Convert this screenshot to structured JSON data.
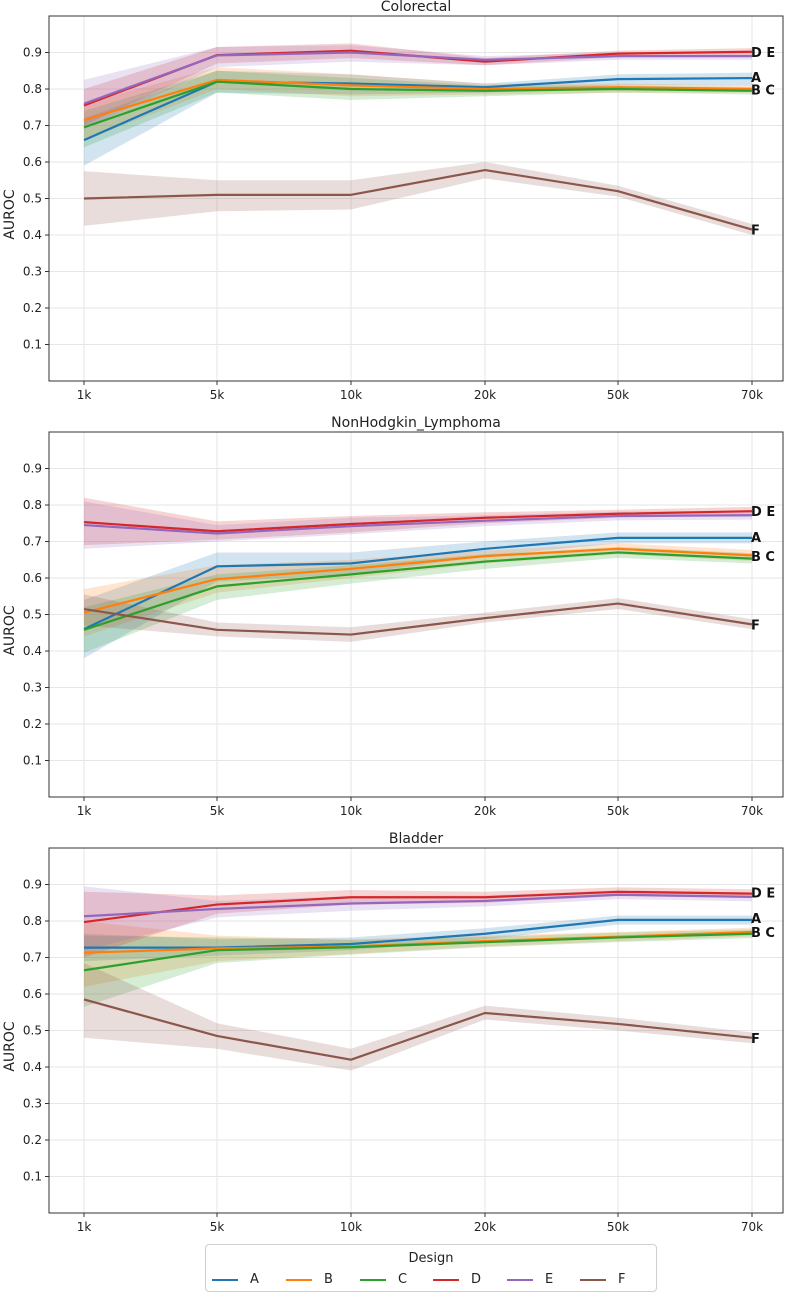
{
  "chart_data": [
    {
      "type": "line",
      "title": "Colorectal",
      "ylabel": "AUROC",
      "xlabel": "",
      "categories": [
        "1k",
        "5k",
        "10k",
        "20k",
        "50k",
        "70k"
      ],
      "ylim": [
        0.0,
        1.0
      ],
      "yticks": [
        0.1,
        0.2,
        0.3,
        0.4,
        0.5,
        0.6,
        0.7,
        0.8,
        0.9
      ],
      "grid": true,
      "series": [
        {
          "name": "A",
          "values": [
            0.66,
            0.82,
            0.815,
            0.805,
            0.827,
            0.83
          ],
          "lower": [
            0.59,
            0.79,
            0.785,
            0.79,
            0.81,
            0.81
          ],
          "upper": [
            0.72,
            0.85,
            0.84,
            0.815,
            0.84,
            0.845
          ]
        },
        {
          "name": "B",
          "values": [
            0.715,
            0.825,
            0.81,
            0.8,
            0.805,
            0.8
          ],
          "lower": [
            0.66,
            0.8,
            0.78,
            0.785,
            0.79,
            0.79
          ],
          "upper": [
            0.76,
            0.86,
            0.84,
            0.815,
            0.815,
            0.81
          ]
        },
        {
          "name": "C",
          "values": [
            0.695,
            0.82,
            0.8,
            0.795,
            0.8,
            0.795
          ],
          "lower": [
            0.64,
            0.79,
            0.77,
            0.78,
            0.79,
            0.785
          ],
          "upper": [
            0.74,
            0.85,
            0.83,
            0.81,
            0.81,
            0.805
          ]
        },
        {
          "name": "D",
          "values": [
            0.755,
            0.893,
            0.905,
            0.875,
            0.897,
            0.902
          ],
          "lower": [
            0.7,
            0.87,
            0.885,
            0.865,
            0.887,
            0.892
          ],
          "upper": [
            0.8,
            0.915,
            0.925,
            0.885,
            0.905,
            0.912
          ]
        },
        {
          "name": "E",
          "values": [
            0.76,
            0.892,
            0.9,
            0.88,
            0.89,
            0.89
          ],
          "lower": [
            0.69,
            0.86,
            0.875,
            0.865,
            0.88,
            0.88
          ],
          "upper": [
            0.825,
            0.915,
            0.92,
            0.89,
            0.9,
            0.9
          ]
        },
        {
          "name": "F",
          "values": [
            0.5,
            0.51,
            0.51,
            0.578,
            0.52,
            0.415
          ],
          "lower": [
            0.425,
            0.465,
            0.47,
            0.555,
            0.505,
            0.4
          ],
          "upper": [
            0.575,
            0.55,
            0.55,
            0.6,
            0.535,
            0.43
          ]
        }
      ],
      "end_labels": [
        {
          "text": "D E",
          "value": 0.902
        },
        {
          "text": "A",
          "value": 0.833
        },
        {
          "text": "B C",
          "value": 0.798
        },
        {
          "text": "F",
          "value": 0.415
        }
      ]
    },
    {
      "type": "line",
      "title": "NonHodgkin_Lymphoma",
      "ylabel": "AUROC",
      "xlabel": "",
      "categories": [
        "1k",
        "5k",
        "10k",
        "20k",
        "50k",
        "70k"
      ],
      "ylim": [
        0.0,
        1.0
      ],
      "yticks": [
        0.1,
        0.2,
        0.3,
        0.4,
        0.5,
        0.6,
        0.7,
        0.8,
        0.9
      ],
      "grid": true,
      "series": [
        {
          "name": "A",
          "values": [
            0.46,
            0.632,
            0.64,
            0.68,
            0.71,
            0.71
          ],
          "lower": [
            0.38,
            0.59,
            0.61,
            0.66,
            0.695,
            0.695
          ],
          "upper": [
            0.54,
            0.67,
            0.67,
            0.7,
            0.725,
            0.725
          ]
        },
        {
          "name": "B",
          "values": [
            0.505,
            0.597,
            0.625,
            0.66,
            0.68,
            0.662
          ],
          "lower": [
            0.44,
            0.56,
            0.6,
            0.64,
            0.665,
            0.647
          ],
          "upper": [
            0.57,
            0.635,
            0.65,
            0.675,
            0.695,
            0.677
          ]
        },
        {
          "name": "C",
          "values": [
            0.458,
            0.577,
            0.61,
            0.645,
            0.67,
            0.653
          ],
          "lower": [
            0.395,
            0.54,
            0.585,
            0.625,
            0.655,
            0.64
          ],
          "upper": [
            0.52,
            0.61,
            0.635,
            0.665,
            0.685,
            0.668
          ]
        },
        {
          "name": "D",
          "values": [
            0.753,
            0.728,
            0.748,
            0.765,
            0.776,
            0.783
          ],
          "lower": [
            0.69,
            0.705,
            0.725,
            0.75,
            0.765,
            0.772
          ],
          "upper": [
            0.82,
            0.755,
            0.77,
            0.78,
            0.787,
            0.795
          ]
        },
        {
          "name": "E",
          "values": [
            0.745,
            0.722,
            0.742,
            0.757,
            0.77,
            0.772
          ],
          "lower": [
            0.68,
            0.7,
            0.72,
            0.742,
            0.758,
            0.76
          ],
          "upper": [
            0.81,
            0.745,
            0.765,
            0.772,
            0.782,
            0.785
          ]
        },
        {
          "name": "F",
          "values": [
            0.515,
            0.458,
            0.445,
            0.49,
            0.53,
            0.473
          ],
          "lower": [
            0.47,
            0.44,
            0.425,
            0.478,
            0.515,
            0.46
          ],
          "upper": [
            0.555,
            0.478,
            0.465,
            0.505,
            0.545,
            0.487
          ]
        }
      ],
      "end_labels": [
        {
          "text": "D E",
          "value": 0.783
        },
        {
          "text": "A",
          "value": 0.713
        },
        {
          "text": "B C",
          "value": 0.66
        },
        {
          "text": "F",
          "value": 0.473
        }
      ]
    },
    {
      "type": "line",
      "title": "Bladder",
      "ylabel": "AUROC",
      "xlabel": "",
      "categories": [
        "1k",
        "5k",
        "10k",
        "20k",
        "50k",
        "70k"
      ],
      "ylim": [
        0.0,
        1.0
      ],
      "yticks": [
        0.1,
        0.2,
        0.3,
        0.4,
        0.5,
        0.6,
        0.7,
        0.8,
        0.9
      ],
      "grid": true,
      "series": [
        {
          "name": "A",
          "values": [
            0.727,
            0.727,
            0.737,
            0.765,
            0.803,
            0.803
          ],
          "lower": [
            0.69,
            0.705,
            0.72,
            0.75,
            0.79,
            0.79
          ],
          "upper": [
            0.765,
            0.75,
            0.755,
            0.78,
            0.815,
            0.815
          ]
        },
        {
          "name": "B",
          "values": [
            0.713,
            0.725,
            0.73,
            0.745,
            0.757,
            0.77
          ],
          "lower": [
            0.62,
            0.69,
            0.71,
            0.73,
            0.745,
            0.758
          ],
          "upper": [
            0.8,
            0.76,
            0.75,
            0.76,
            0.77,
            0.782
          ]
        },
        {
          "name": "C",
          "values": [
            0.665,
            0.72,
            0.728,
            0.742,
            0.755,
            0.765
          ],
          "lower": [
            0.565,
            0.685,
            0.708,
            0.728,
            0.742,
            0.753
          ],
          "upper": [
            0.76,
            0.755,
            0.748,
            0.756,
            0.768,
            0.777
          ]
        },
        {
          "name": "D",
          "values": [
            0.797,
            0.845,
            0.865,
            0.865,
            0.88,
            0.875
          ],
          "lower": [
            0.7,
            0.82,
            0.845,
            0.85,
            0.868,
            0.863
          ],
          "upper": [
            0.88,
            0.87,
            0.885,
            0.88,
            0.892,
            0.887
          ]
        },
        {
          "name": "E",
          "values": [
            0.813,
            0.833,
            0.848,
            0.855,
            0.872,
            0.866
          ],
          "lower": [
            0.72,
            0.81,
            0.828,
            0.84,
            0.86,
            0.854
          ],
          "upper": [
            0.895,
            0.855,
            0.868,
            0.87,
            0.884,
            0.878
          ]
        },
        {
          "name": "F",
          "values": [
            0.585,
            0.485,
            0.42,
            0.548,
            0.518,
            0.48
          ],
          "lower": [
            0.48,
            0.45,
            0.39,
            0.53,
            0.5,
            0.465
          ],
          "upper": [
            0.685,
            0.52,
            0.45,
            0.568,
            0.535,
            0.495
          ]
        }
      ],
      "end_labels": [
        {
          "text": "D E",
          "value": 0.878
        },
        {
          "text": "A",
          "value": 0.808
        },
        {
          "text": "B C",
          "value": 0.77
        },
        {
          "text": "F",
          "value": 0.48
        }
      ]
    }
  ],
  "legend": {
    "title": "Design",
    "placement": "bottom-center",
    "items": [
      {
        "label": "A",
        "color": "#1f77b4"
      },
      {
        "label": "B",
        "color": "#ff7f0e"
      },
      {
        "label": "C",
        "color": "#2ca02c"
      },
      {
        "label": "D",
        "color": "#d62728"
      },
      {
        "label": "E",
        "color": "#9467bd"
      },
      {
        "label": "F",
        "color": "#8c564b"
      }
    ]
  }
}
